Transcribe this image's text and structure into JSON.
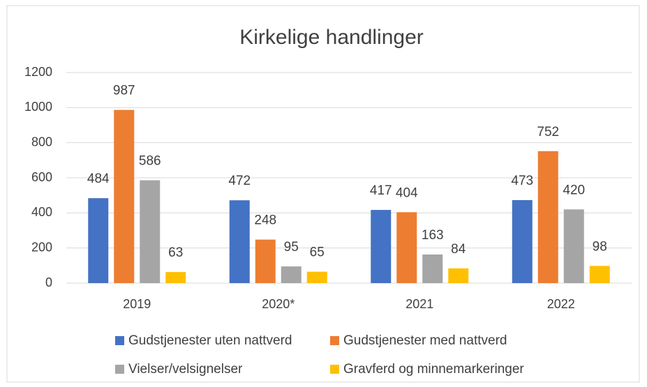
{
  "chart_data": {
    "type": "bar",
    "title": "Kirkelige handlinger",
    "categories": [
      "2019",
      "2020*",
      "2021",
      "2022"
    ],
    "series": [
      {
        "name": "Gudstjenester uten nattverd",
        "color": "#4472c4",
        "values": [
          484,
          472,
          417,
          473
        ]
      },
      {
        "name": "Gudstjenester med nattverd",
        "color": "#ed7d31",
        "values": [
          987,
          248,
          404,
          752
        ]
      },
      {
        "name": "Vielser/velsignelser",
        "color": "#a5a5a5",
        "values": [
          586,
          95,
          163,
          420
        ]
      },
      {
        "name": "Gravferd og minnemarkeringer",
        "color": "#ffc000",
        "values": [
          63,
          65,
          84,
          98
        ]
      }
    ],
    "ylim": [
      0,
      1200
    ],
    "yticks": [
      0,
      200,
      400,
      600,
      800,
      1000,
      1200
    ],
    "grid": true,
    "legend": "bottom"
  }
}
